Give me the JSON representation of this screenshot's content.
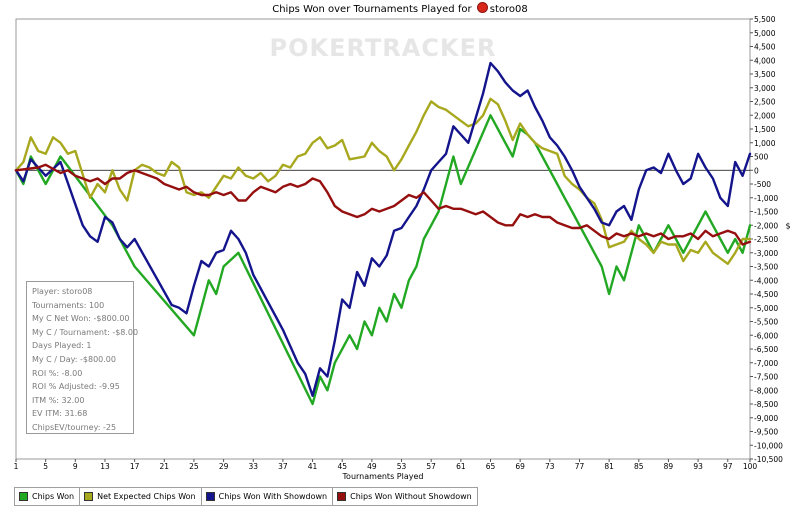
{
  "chart_data": {
    "type": "line",
    "title": "Chips Won over Tournaments Played for storo08",
    "title_prefix": "Chips Won over Tournaments Played for",
    "title_player": "storo08",
    "watermark": "POKERTRACKER",
    "xlabel": "Tournaments Played",
    "ylabel": "$",
    "xlim": [
      1,
      100
    ],
    "ylim": [
      -10500,
      5500
    ],
    "x_ticks": [
      "1",
      "5",
      "9",
      "13",
      "17",
      "21",
      "25",
      "29",
      "33",
      "37",
      "41",
      "45",
      "49",
      "53",
      "57",
      "61",
      "65",
      "69",
      "73",
      "77",
      "81",
      "85",
      "89",
      "93",
      "97",
      "100"
    ],
    "y_ticks": [
      "5,500",
      "5,000",
      "4,500",
      "4,000",
      "3,500",
      "3,000",
      "2,500",
      "2,000",
      "1,500",
      "1,000",
      "500",
      "0",
      "-500",
      "-1,000",
      "-1,500",
      "-2,000",
      "-2,500",
      "-3,000",
      "-3,500",
      "-4,000",
      "-4,500",
      "-5,000",
      "-5,500",
      "-6,000",
      "-6,500",
      "-7,000",
      "-7,500",
      "-8,000",
      "-8,500",
      "-9,000",
      "-9,500",
      "-10,000",
      "-10,500"
    ],
    "y_tick_values": [
      5500,
      5000,
      4500,
      4000,
      3500,
      3000,
      2500,
      2000,
      1500,
      1000,
      500,
      0,
      -500,
      -1000,
      -1500,
      -2000,
      -2500,
      -3000,
      -3500,
      -4000,
      -4500,
      -5000,
      -5500,
      -6000,
      -6500,
      -7000,
      -7500,
      -8000,
      -8500,
      -9000,
      -9500,
      -10000,
      -10500
    ],
    "legend_position": "bottom-left",
    "series": [
      {
        "name": "Chips Won",
        "color": "#22a822",
        "x": [
          1,
          2,
          3,
          5,
          7,
          14,
          17,
          25,
          26,
          27,
          28,
          29,
          31,
          41,
          42,
          43,
          44,
          46,
          47,
          48,
          49,
          50,
          51,
          52,
          53,
          54,
          55,
          56,
          57,
          58,
          59,
          60,
          61,
          65,
          66,
          67,
          68,
          69,
          70,
          71,
          72,
          73,
          74,
          75,
          76,
          77,
          78,
          79,
          80,
          81,
          82,
          83,
          84,
          85,
          86,
          87,
          88,
          89,
          90,
          91,
          92,
          93,
          94,
          95,
          96,
          97,
          98,
          99,
          100
        ],
        "y": [
          0,
          -500,
          500,
          -500,
          500,
          -2000,
          -3500,
          -6000,
          -5000,
          -4000,
          -4500,
          -3500,
          -3000,
          -8500,
          -7500,
          -8000,
          -7000,
          -6000,
          -6500,
          -5500,
          -6000,
          -5000,
          -5500,
          -4500,
          -5000,
          -4000,
          -3500,
          -2500,
          -2000,
          -1500,
          -500,
          500,
          -500,
          2000,
          1500,
          1000,
          500,
          1500,
          1300,
          1000,
          500,
          0,
          -500,
          -1000,
          -1500,
          -2000,
          -2500,
          -3000,
          -3500,
          -4500,
          -3500,
          -4000,
          -3000,
          -2000,
          -2500,
          -3000,
          -2500,
          -2000,
          -2500,
          -3000,
          -2500,
          -2000,
          -1500,
          -2000,
          -2500,
          -3000,
          -2500,
          -3000,
          -2000
        ]
      },
      {
        "name": "Net Expected Chips Won",
        "color": "#a8a81e",
        "x": [
          1,
          2,
          3,
          4,
          5,
          6,
          7,
          8,
          9,
          11,
          12,
          13,
          14,
          15,
          16,
          17,
          18,
          19,
          20,
          21,
          22,
          23,
          24,
          25,
          26,
          27,
          28,
          29,
          30,
          31,
          32,
          33,
          34,
          35,
          36,
          37,
          38,
          39,
          40,
          41,
          42,
          43,
          44,
          45,
          46,
          47,
          48,
          49,
          50,
          51,
          52,
          53,
          54,
          55,
          56,
          57,
          58,
          59,
          60,
          61,
          62,
          63,
          64,
          65,
          66,
          67,
          68,
          69,
          70,
          71,
          72,
          73,
          74,
          75,
          76,
          77,
          78,
          79,
          80,
          81,
          82,
          83,
          84,
          85,
          86,
          87,
          88,
          89,
          90,
          91,
          92,
          93,
          94,
          95,
          96,
          97,
          98,
          99,
          100
        ],
        "y": [
          0,
          300,
          1200,
          700,
          600,
          1200,
          1000,
          600,
          700,
          -1000,
          -500,
          -800,
          0,
          -700,
          -1100,
          0,
          200,
          100,
          -100,
          -200,
          300,
          100,
          -800,
          -900,
          -800,
          -1000,
          -600,
          -200,
          -300,
          100,
          -200,
          -300,
          -100,
          -400,
          -200,
          200,
          100,
          500,
          600,
          1000,
          1200,
          800,
          900,
          1100,
          400,
          450,
          500,
          1000,
          700,
          500,
          0,
          400,
          900,
          1400,
          2000,
          2500,
          2300,
          2200,
          2000,
          1800,
          1600,
          1700,
          2000,
          2600,
          2400,
          1800,
          1100,
          1700,
          1300,
          1000,
          800,
          700,
          600,
          -200,
          -500,
          -700,
          -1000,
          -1200,
          -1800,
          -2800,
          -2700,
          -2600,
          -2200,
          -2500,
          -2700,
          -3000,
          -2600,
          -2700,
          -2700,
          -3300,
          -2900,
          -3000,
          -2600,
          -3000,
          -3200,
          -3400,
          -3000,
          -2500,
          -2500
        ]
      },
      {
        "name": "Chips Won With Showdown",
        "color": "#14148c",
        "x": [
          1,
          2,
          3,
          5,
          7,
          10,
          11,
          12,
          13,
          14,
          15,
          16,
          17,
          22,
          23,
          24,
          25,
          26,
          27,
          28,
          29,
          30,
          31,
          32,
          33,
          34,
          35,
          36,
          37,
          38,
          39,
          40,
          41,
          42,
          43,
          44,
          45,
          46,
          47,
          48,
          49,
          50,
          51,
          52,
          53,
          54,
          55,
          56,
          57,
          58,
          59,
          60,
          61,
          62,
          63,
          64,
          65,
          66,
          67,
          68,
          69,
          70,
          71,
          72,
          73,
          74,
          75,
          76,
          77,
          78,
          79,
          80,
          81,
          82,
          83,
          84,
          85,
          86,
          87,
          88,
          89,
          90,
          91,
          92,
          93,
          94,
          95,
          96,
          97,
          98,
          99,
          100
        ],
        "y": [
          0,
          -400,
          400,
          -200,
          300,
          -2000,
          -2400,
          -2600,
          -1700,
          -1900,
          -2500,
          -2800,
          -2500,
          -4900,
          -5000,
          -5200,
          -4200,
          -3300,
          -3500,
          -3000,
          -2900,
          -2200,
          -2500,
          -3000,
          -3800,
          -4300,
          -4800,
          -5300,
          -5800,
          -6400,
          -7000,
          -7400,
          -8200,
          -7200,
          -7500,
          -6200,
          -4700,
          -5000,
          -3700,
          -4200,
          -3200,
          -3500,
          -3100,
          -2200,
          -2100,
          -1700,
          -1300,
          -700,
          0,
          300,
          600,
          1600,
          1300,
          1000,
          1900,
          2800,
          3900,
          3600,
          3200,
          2900,
          2700,
          2900,
          2300,
          1800,
          1200,
          900,
          500,
          0,
          -600,
          -1000,
          -1400,
          -1900,
          -2000,
          -1500,
          -1300,
          -1800,
          -700,
          0,
          100,
          -100,
          600,
          0,
          -500,
          -300,
          600,
          100,
          -300,
          -1000,
          -1300,
          300,
          -200,
          600
        ]
      },
      {
        "name": "Chips Won Without Showdown",
        "color": "#960f0f",
        "x": [
          1,
          4,
          5,
          7,
          8,
          9,
          10,
          11,
          12,
          13,
          14,
          15,
          16,
          17,
          18,
          19,
          20,
          21,
          22,
          23,
          24,
          25,
          26,
          27,
          28,
          29,
          30,
          31,
          32,
          33,
          34,
          35,
          36,
          37,
          38,
          39,
          40,
          41,
          42,
          43,
          44,
          45,
          46,
          47,
          48,
          49,
          50,
          51,
          52,
          53,
          54,
          55,
          56,
          57,
          58,
          59,
          60,
          61,
          62,
          63,
          64,
          65,
          66,
          67,
          68,
          69,
          70,
          71,
          72,
          73,
          74,
          75,
          76,
          77,
          78,
          79,
          80,
          81,
          82,
          83,
          84,
          85,
          86,
          87,
          88,
          89,
          90,
          91,
          92,
          93,
          94,
          95,
          96,
          97,
          98,
          99,
          100
        ],
        "y": [
          0,
          100,
          200,
          -100,
          0,
          -200,
          -300,
          -400,
          -300,
          -500,
          -300,
          -300,
          -100,
          0,
          -100,
          -200,
          -300,
          -500,
          -600,
          -700,
          -600,
          -800,
          -900,
          -900,
          -800,
          -900,
          -800,
          -1100,
          -1100,
          -800,
          -600,
          -700,
          -800,
          -600,
          -500,
          -600,
          -500,
          -300,
          -400,
          -800,
          -1300,
          -1500,
          -1600,
          -1700,
          -1600,
          -1400,
          -1500,
          -1400,
          -1300,
          -1100,
          -900,
          -1000,
          -800,
          -1100,
          -1400,
          -1300,
          -1400,
          -1400,
          -1500,
          -1600,
          -1500,
          -1700,
          -1900,
          -2000,
          -2000,
          -1600,
          -1700,
          -1600,
          -1700,
          -1700,
          -1900,
          -2000,
          -2100,
          -2100,
          -2000,
          -2200,
          -2400,
          -2500,
          -2300,
          -2400,
          -2300,
          -2400,
          -2300,
          -2400,
          -2300,
          -2500,
          -2400,
          -2400,
          -2300,
          -2500,
          -2200,
          -2400,
          -2300,
          -2200,
          -2300,
          -2700,
          -2600
        ]
      }
    ]
  },
  "info_panel": [
    "Player: storo08",
    "Tournaments: 100",
    "My C Net Won: -$800.00",
    "My C / Tournament: -$8.00",
    "Days Played: 1",
    "My C / Day: -$800.00",
    "ROI %: -8.00",
    "ROI % Adjusted: -9.95",
    "ITM %: 32.00",
    "EV ITM: 31.68",
    "ChipsEV/tourney: -25"
  ]
}
